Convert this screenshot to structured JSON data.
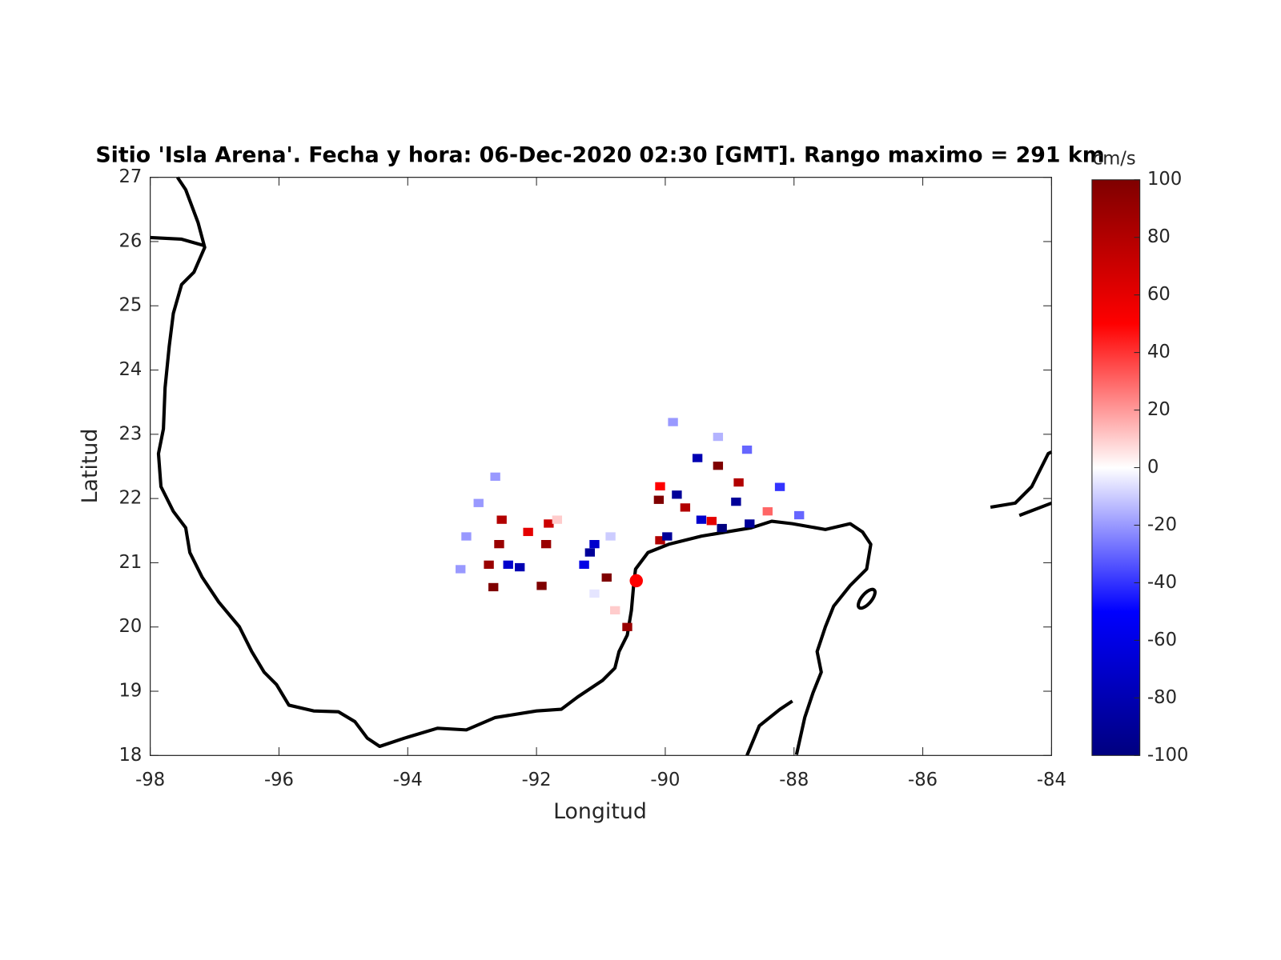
{
  "chart_data": {
    "type": "map",
    "title": "Sitio 'Isla Arena'. Fecha y hora: 06-Dec-2020 02:30 [GMT]. Rango maximo = 291 km",
    "x_label": "Longitud",
    "y_label": "Latitud",
    "xlim": [
      -98,
      -84
    ],
    "xticks": [
      -98,
      -96,
      -94,
      -92,
      -90,
      -88,
      -86,
      -84
    ],
    "ylim": [
      18,
      27
    ],
    "yticks": [
      18,
      19,
      20,
      21,
      22,
      23,
      24,
      25,
      26,
      27
    ],
    "colorbar": {
      "label": "cm/s",
      "lim": [
        -100,
        100
      ],
      "ticks": [
        -100,
        -80,
        -60,
        -40,
        -20,
        0,
        20,
        40,
        60,
        80,
        100
      ],
      "colormap": [
        "#00007f",
        "#0000ff",
        "#ffffff",
        "#ff0000",
        "#7f0000"
      ]
    },
    "site": {
      "lon": -90.45,
      "lat": 20.72,
      "color": "#ff0000"
    },
    "radar_cells": {
      "lon": [
        -92.64,
        -92.9,
        -93.09,
        -93.18,
        -92.54,
        -92.58,
        -92.67,
        -92.74,
        -92.44,
        -92.26,
        -92.13,
        -91.85,
        -91.92,
        -91.81,
        -91.68,
        -91.17,
        -91.1,
        -91.26,
        -90.91,
        -90.59,
        -90.85,
        -90.78,
        -91.1,
        -90.08,
        -89.97,
        -89.88,
        -89.18,
        -88.73,
        -88.22,
        -87.92,
        -89.18,
        -88.86,
        -88.41,
        -89.5,
        -89.82,
        -89.44,
        -89.12,
        -88.69,
        -88.9,
        -90.1,
        -89.69,
        -89.28,
        -90.08
      ],
      "lat": [
        22.34,
        21.93,
        21.41,
        20.9,
        21.67,
        21.29,
        20.62,
        20.97,
        20.97,
        20.93,
        21.48,
        21.29,
        20.64,
        21.61,
        21.67,
        21.16,
        21.29,
        20.97,
        20.77,
        20.0,
        21.41,
        20.26,
        20.52,
        21.35,
        21.41,
        23.19,
        22.96,
        22.76,
        22.18,
        21.74,
        22.51,
        22.25,
        21.8,
        22.63,
        22.06,
        21.67,
        21.54,
        21.61,
        21.95,
        21.98,
        21.86,
        21.65,
        22.19
      ],
      "values": [
        -20,
        -20,
        -20,
        -20,
        80,
        90,
        100,
        90,
        -70,
        -80,
        60,
        90,
        100,
        70,
        10,
        -90,
        -70,
        -60,
        100,
        90,
        -10,
        10,
        -5,
        80,
        -90,
        -20,
        -15,
        -30,
        -40,
        -30,
        100,
        80,
        30,
        -80,
        -90,
        -70,
        -100,
        -90,
        -90,
        100,
        80,
        60,
        50
      ]
    }
  }
}
